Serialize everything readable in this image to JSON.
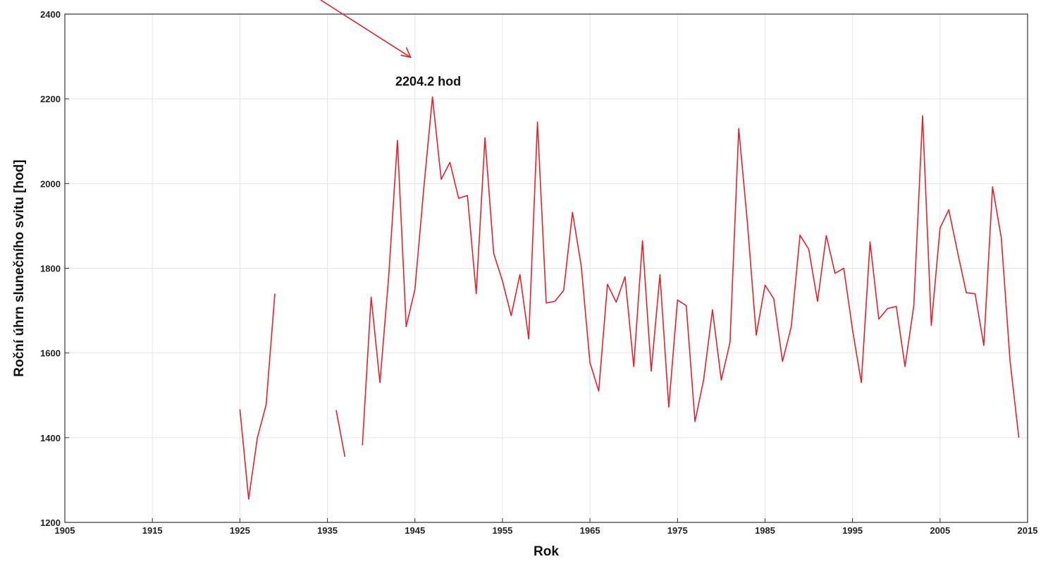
{
  "chart_data": {
    "type": "line",
    "title": "",
    "xlabel": "Rok",
    "ylabel": "Roční úhrn slunečního svitu [hod]",
    "xlim": [
      1905,
      2015
    ],
    "ylim": [
      1200,
      2400
    ],
    "xticks": [
      1905,
      1915,
      1925,
      1935,
      1945,
      1955,
      1965,
      1975,
      1985,
      1995,
      2005,
      2015
    ],
    "yticks": [
      1200,
      1400,
      1600,
      1800,
      2000,
      2200,
      2400
    ],
    "grid": true,
    "legend": "none",
    "series": [
      {
        "color": "#e8202a",
        "points": [
          [
            1925,
            1467
          ],
          [
            1926,
            1255
          ],
          [
            1927,
            1400
          ],
          [
            1928,
            1478
          ],
          [
            1929,
            1740
          ],
          [
            1930,
            null
          ],
          [
            1936,
            1465
          ],
          [
            1937,
            1355
          ],
          [
            1938,
            null
          ],
          [
            1939,
            1382
          ],
          [
            1940,
            1732
          ],
          [
            1941,
            1530
          ],
          [
            1942,
            1780
          ],
          [
            1943,
            2102
          ],
          [
            1944,
            1662
          ],
          [
            1945,
            1750
          ],
          [
            1946,
            1985
          ],
          [
            1947,
            2204.2
          ],
          [
            1948,
            2010
          ],
          [
            1949,
            2050
          ],
          [
            1950,
            1965
          ],
          [
            1951,
            1972
          ],
          [
            1952,
            1740
          ],
          [
            1953,
            2108
          ],
          [
            1954,
            1835
          ],
          [
            1955,
            1770
          ],
          [
            1956,
            1688
          ],
          [
            1957,
            1785
          ],
          [
            1958,
            1633
          ],
          [
            1959,
            2145
          ],
          [
            1960,
            1718
          ],
          [
            1961,
            1722
          ],
          [
            1962,
            1748
          ],
          [
            1963,
            1932
          ],
          [
            1964,
            1805
          ],
          [
            1965,
            1577
          ],
          [
            1966,
            1510
          ],
          [
            1967,
            1762
          ],
          [
            1968,
            1720
          ],
          [
            1969,
            1780
          ],
          [
            1970,
            1568
          ],
          [
            1971,
            1865
          ],
          [
            1972,
            1557
          ],
          [
            1973,
            1785
          ],
          [
            1974,
            1472
          ],
          [
            1975,
            1725
          ],
          [
            1976,
            1712
          ],
          [
            1977,
            1438
          ],
          [
            1978,
            1538
          ],
          [
            1979,
            1702
          ],
          [
            1980,
            1536
          ],
          [
            1981,
            1625
          ],
          [
            1982,
            2130
          ],
          [
            1983,
            1905
          ],
          [
            1984,
            1642
          ],
          [
            1985,
            1760
          ],
          [
            1986,
            1728
          ],
          [
            1987,
            1580
          ],
          [
            1988,
            1662
          ],
          [
            1989,
            1878
          ],
          [
            1990,
            1845
          ],
          [
            1991,
            1722
          ],
          [
            1992,
            1877
          ],
          [
            1993,
            1788
          ],
          [
            1994,
            1800
          ],
          [
            1995,
            1655
          ],
          [
            1996,
            1530
          ],
          [
            1997,
            1862
          ],
          [
            1998,
            1680
          ],
          [
            1999,
            1705
          ],
          [
            2000,
            1710
          ],
          [
            2001,
            1568
          ],
          [
            2002,
            1712
          ],
          [
            2003,
            2160
          ],
          [
            2004,
            1665
          ],
          [
            2005,
            1895
          ],
          [
            2006,
            1938
          ],
          [
            2007,
            1838
          ],
          [
            2008,
            1742
          ],
          [
            2009,
            1740
          ],
          [
            2010,
            1618
          ],
          [
            2011,
            1992
          ],
          [
            2012,
            1872
          ],
          [
            2013,
            1580
          ],
          [
            2014,
            1400
          ]
        ]
      }
    ],
    "annotations": [
      {
        "text": "2204.2 hod",
        "x": 1947,
        "y": 2204.2
      }
    ]
  }
}
